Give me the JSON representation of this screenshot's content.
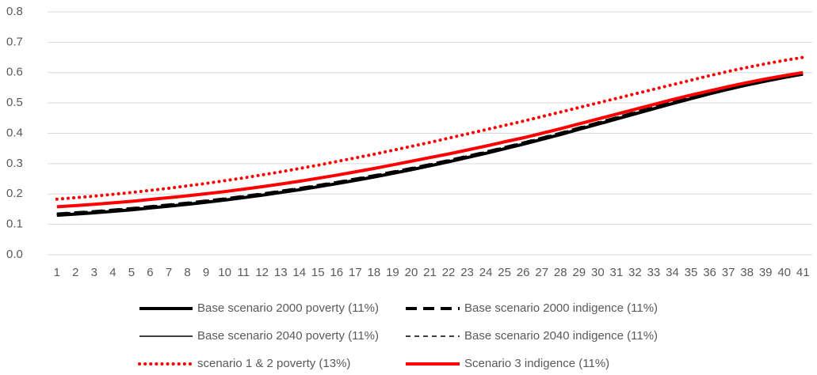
{
  "chart_data": {
    "type": "line",
    "categories": [
      1,
      2,
      3,
      4,
      5,
      6,
      7,
      8,
      9,
      10,
      11,
      12,
      13,
      14,
      15,
      16,
      17,
      18,
      19,
      20,
      21,
      22,
      23,
      24,
      25,
      26,
      27,
      28,
      29,
      30,
      31,
      32,
      33,
      34,
      35,
      36,
      37,
      38,
      39,
      40,
      41
    ],
    "ylim": [
      0,
      0.8
    ],
    "yticks": [
      {
        "value": 0,
        "label": "0.0"
      },
      0.1,
      0.2,
      0.3,
      0.4,
      0.5,
      0.6,
      0.7,
      0.8
    ],
    "grid": true,
    "legend": "bottom",
    "series": [
      {
        "name": "Base scenario 2000 poverty (11%)",
        "color": "#000000",
        "style": "solid",
        "weight": "heavy",
        "values": [
          0.13,
          0.134,
          0.138,
          0.143,
          0.148,
          0.154,
          0.16,
          0.166,
          0.173,
          0.18,
          0.188,
          0.196,
          0.205,
          0.214,
          0.224,
          0.234,
          0.245,
          0.256,
          0.268,
          0.28,
          0.293,
          0.306,
          0.32,
          0.334,
          0.349,
          0.364,
          0.38,
          0.396,
          0.413,
          0.43,
          0.447,
          0.464,
          0.481,
          0.498,
          0.514,
          0.53,
          0.545,
          0.559,
          0.572,
          0.584,
          0.595
        ]
      },
      {
        "name": "Base scenario 2000 indigence (11%)",
        "color": "#000000",
        "style": "dashed",
        "weight": "heavy",
        "values": [
          0.134,
          0.138,
          0.142,
          0.147,
          0.152,
          0.158,
          0.164,
          0.17,
          0.177,
          0.184,
          0.192,
          0.2,
          0.209,
          0.218,
          0.228,
          0.238,
          0.249,
          0.26,
          0.272,
          0.284,
          0.297,
          0.31,
          0.324,
          0.338,
          0.353,
          0.368,
          0.384,
          0.4,
          0.417,
          0.434,
          0.451,
          0.468,
          0.485,
          0.502,
          0.518,
          0.534,
          0.549,
          0.563,
          0.576,
          0.588,
          0.599
        ]
      },
      {
        "name": "Base scenario 2040 poverty (11%)",
        "color": "#000000",
        "style": "solid",
        "weight": "light",
        "values": [
          0.132,
          0.136,
          0.14,
          0.145,
          0.15,
          0.156,
          0.162,
          0.168,
          0.175,
          0.182,
          0.19,
          0.198,
          0.207,
          0.216,
          0.226,
          0.236,
          0.247,
          0.258,
          0.27,
          0.282,
          0.295,
          0.308,
          0.322,
          0.336,
          0.351,
          0.366,
          0.382,
          0.398,
          0.415,
          0.432,
          0.449,
          0.466,
          0.483,
          0.5,
          0.516,
          0.532,
          0.547,
          0.561,
          0.574,
          0.586,
          0.597
        ]
      },
      {
        "name": "Base scenario 2040 indigence (11%)",
        "color": "#000000",
        "style": "dashed",
        "weight": "light",
        "values": [
          0.136,
          0.14,
          0.144,
          0.149,
          0.154,
          0.16,
          0.166,
          0.172,
          0.179,
          0.186,
          0.194,
          0.202,
          0.211,
          0.22,
          0.23,
          0.24,
          0.251,
          0.262,
          0.274,
          0.286,
          0.299,
          0.312,
          0.326,
          0.34,
          0.355,
          0.37,
          0.386,
          0.402,
          0.419,
          0.436,
          0.453,
          0.47,
          0.487,
          0.504,
          0.52,
          0.536,
          0.551,
          0.565,
          0.578,
          0.59,
          0.601
        ]
      },
      {
        "name": "scenario 1 & 2 poverty (13%)",
        "color": "#ff0000",
        "style": "dotted",
        "weight": "heavy",
        "values": [
          0.183,
          0.188,
          0.193,
          0.199,
          0.205,
          0.212,
          0.219,
          0.227,
          0.235,
          0.244,
          0.253,
          0.263,
          0.273,
          0.284,
          0.295,
          0.307,
          0.319,
          0.331,
          0.344,
          0.357,
          0.37,
          0.384,
          0.398,
          0.412,
          0.426,
          0.44,
          0.455,
          0.47,
          0.485,
          0.5,
          0.515,
          0.53,
          0.545,
          0.56,
          0.575,
          0.59,
          0.604,
          0.617,
          0.629,
          0.64,
          0.65
        ]
      },
      {
        "name": "Scenario 3 indigence (11%)",
        "color": "#ff0000",
        "style": "solid",
        "weight": "heavy",
        "values": [
          0.158,
          0.162,
          0.166,
          0.171,
          0.176,
          0.182,
          0.188,
          0.194,
          0.201,
          0.208,
          0.216,
          0.224,
          0.233,
          0.242,
          0.252,
          0.262,
          0.273,
          0.284,
          0.296,
          0.308,
          0.32,
          0.332,
          0.345,
          0.358,
          0.372,
          0.385,
          0.4,
          0.415,
          0.431,
          0.447,
          0.463,
          0.479,
          0.495,
          0.511,
          0.526,
          0.54,
          0.554,
          0.567,
          0.579,
          0.59,
          0.6
        ]
      }
    ]
  }
}
